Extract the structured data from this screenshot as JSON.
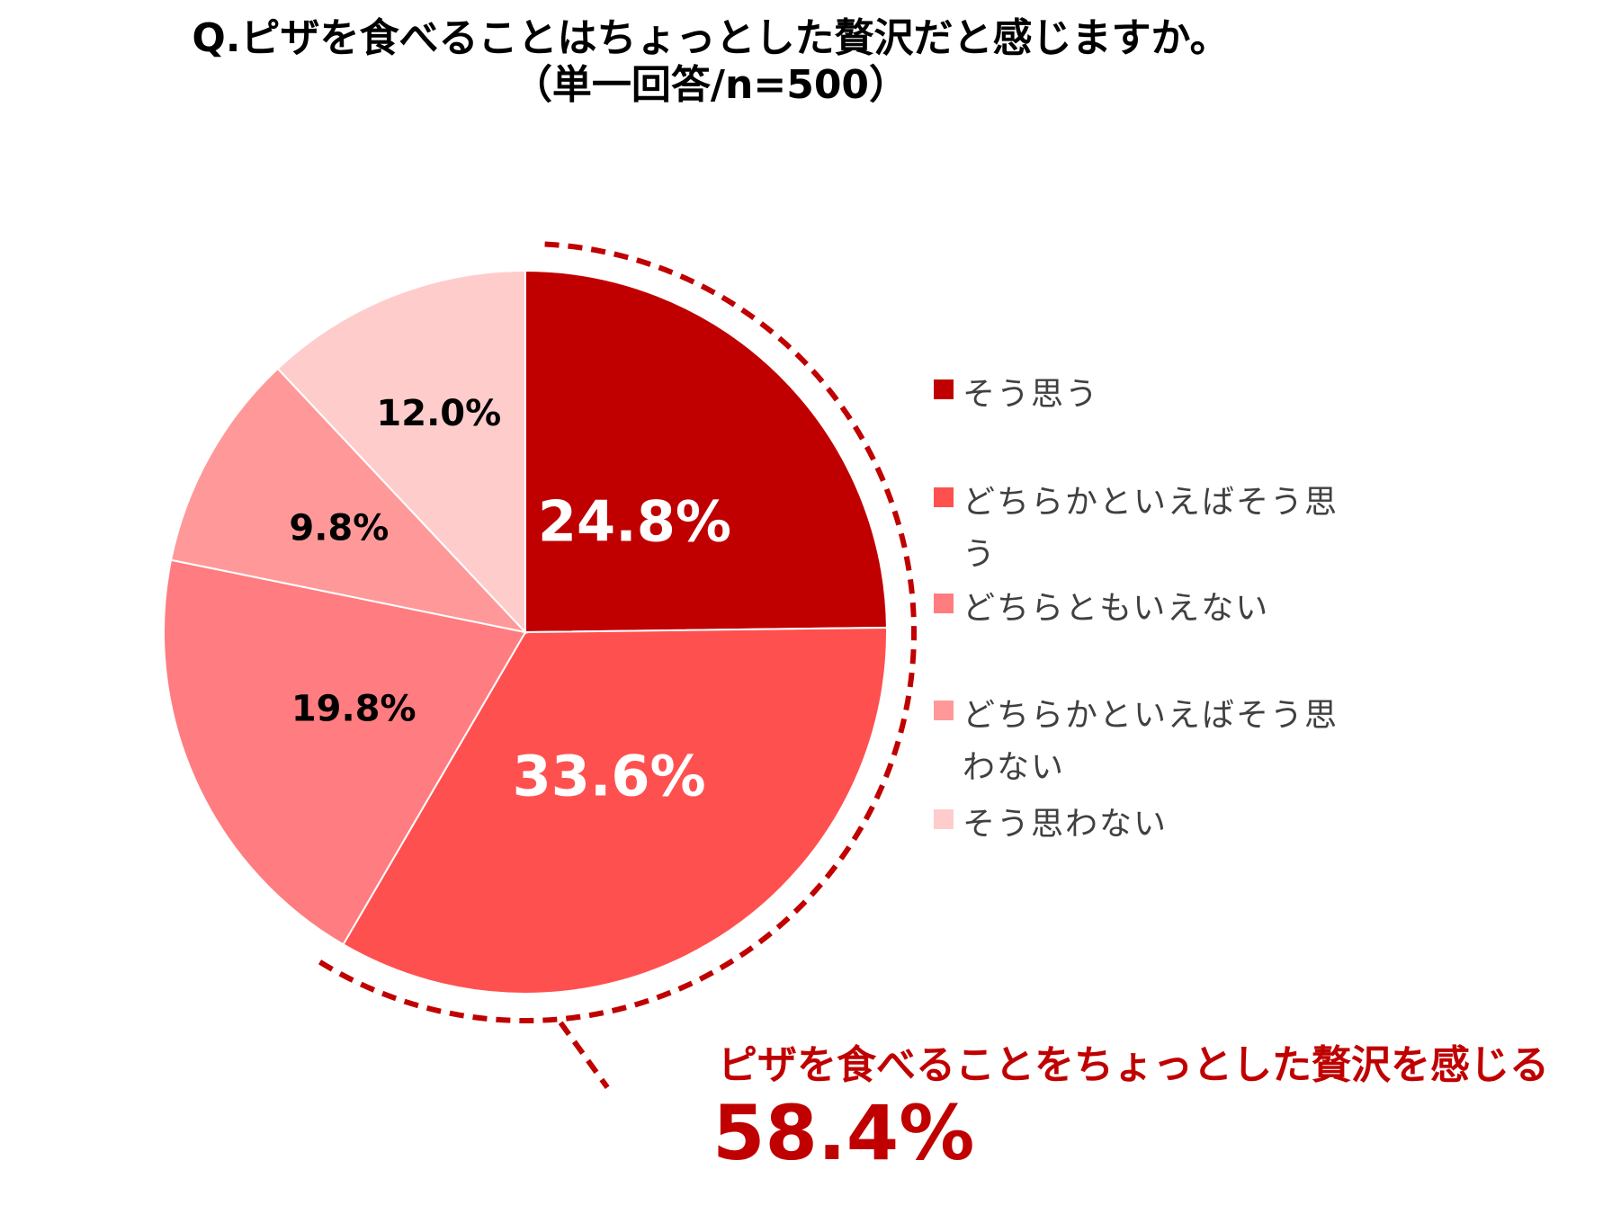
{
  "title": {
    "line1": "Q.ピザを食べることはちょっとした贅沢だと感じますか。",
    "line2": "（単一回答/n=500）"
  },
  "chart_data": {
    "type": "pie",
    "title": "Q.ピザを食べることはちょっとした贅沢だと感じますか。（単一回答/n=500）",
    "unit": "%",
    "legend_position": "right",
    "slices": [
      {
        "name": "そう思う",
        "value": 24.8,
        "label": "24.8%",
        "color": "#c00000",
        "label_color": "#ffffff"
      },
      {
        "name": "どちらかといえばそう思う",
        "value": 33.6,
        "label": "33.6%",
        "color": "#ff5050",
        "label_color": "#ffffff"
      },
      {
        "name": "どちらともいえない",
        "value": 19.8,
        "label": "19.8%",
        "color": "#ff7c80",
        "label_color": "#000000"
      },
      {
        "name": "どちらかといえばそう思わない",
        "value": 9.8,
        "label": "9.8%",
        "color": "#ff9999",
        "label_color": "#000000"
      },
      {
        "name": "そう思わない",
        "value": 12.0,
        "label": "12.0%",
        "color": "#ffcccc",
        "label_color": "#000000"
      }
    ],
    "callout": {
      "text": "ピザを食べることをちょっとした贅沢を感じる",
      "value": "58.4%",
      "color": "#c00000"
    }
  },
  "legend": [
    {
      "label": "そう思う",
      "color": "#c00000"
    },
    {
      "label": "どちらかといえばそう思う",
      "color": "#ff5050"
    },
    {
      "label": "どちらともいえない",
      "color": "#ff7c80"
    },
    {
      "label": "どちらかといえばそう思わない",
      "color": "#ff9999"
    },
    {
      "label": "そう思わない",
      "color": "#ffcccc"
    }
  ]
}
